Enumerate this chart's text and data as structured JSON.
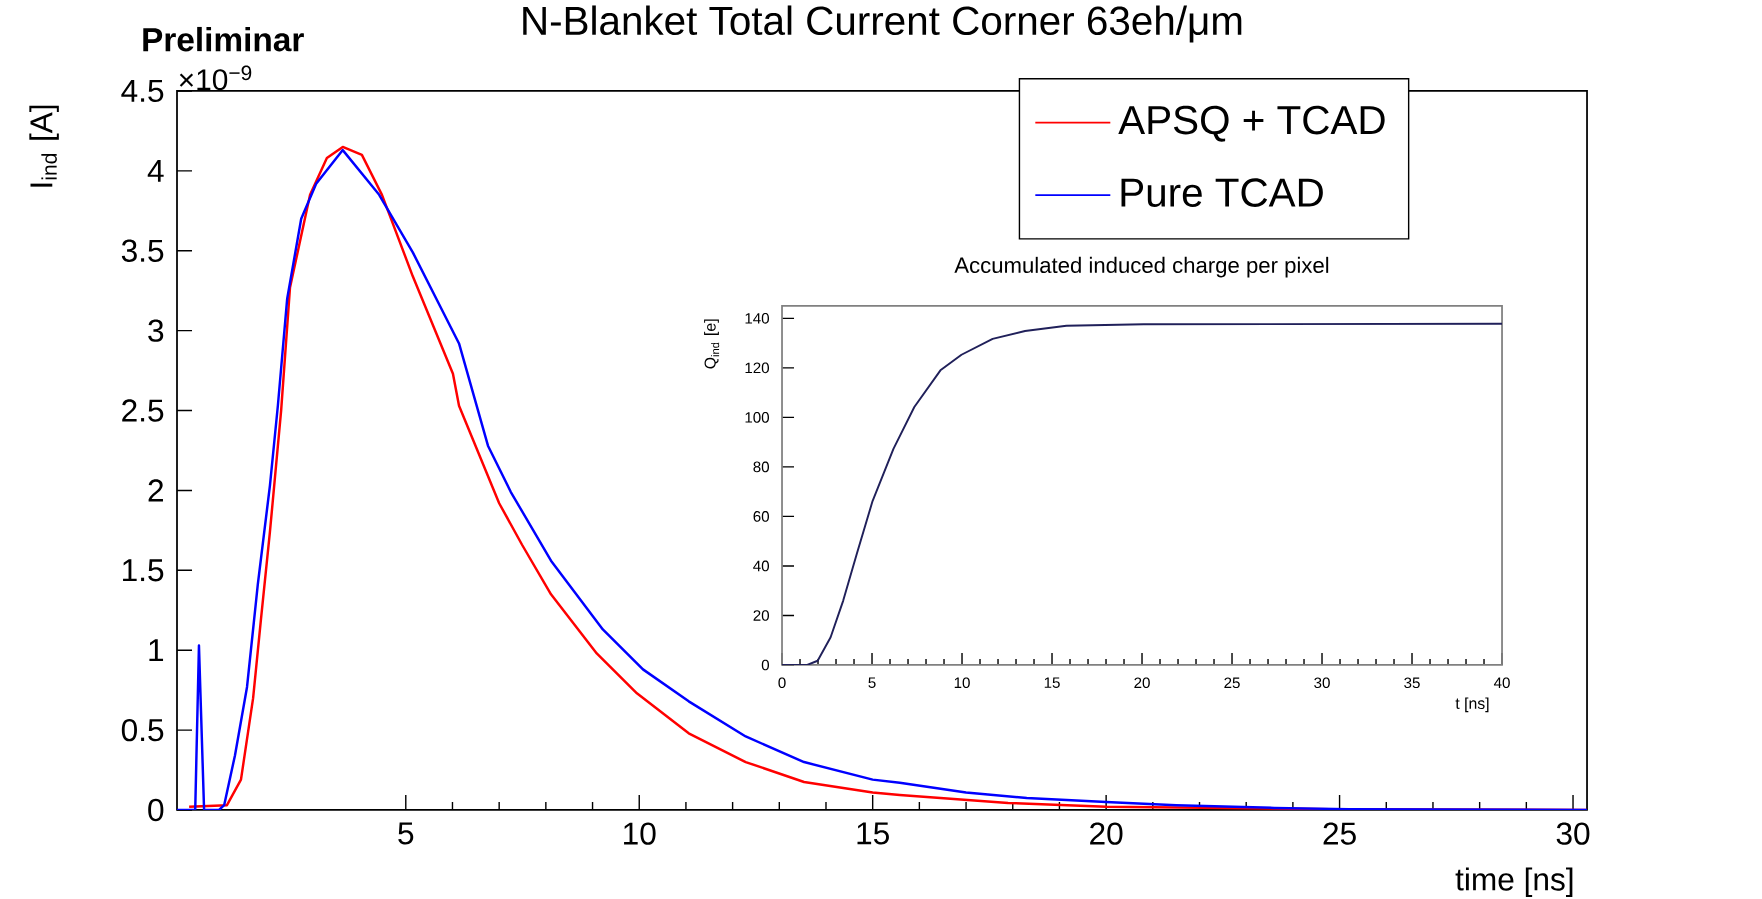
{
  "chart_data": [
    {
      "type": "line",
      "title": "N-Blanket Total Current Corner 63eh/μm",
      "xlabel": "time [ns]",
      "ylabel": "I$_{ind}$ [A]",
      "annotations": [
        "Preliminar",
        "×10$^{−9}$"
      ],
      "xlim": [
        0.1,
        30.3
      ],
      "ylim": [
        0,
        4.5
      ],
      "xticks": [
        5,
        10,
        15,
        20,
        25,
        30
      ],
      "yticks": [
        0,
        0.5,
        1,
        1.5,
        2,
        2.5,
        3,
        3.5,
        4,
        4.5
      ],
      "legend": "top right",
      "marker": "none",
      "line_style": "solid",
      "series": [
        {
          "name": "APSQ + TCAD",
          "color": "#ff0000",
          "x": [
            0.36,
            1.17,
            1.47,
            1.73,
            1.9,
            2.09,
            2.33,
            2.52,
            2.95,
            3.31,
            3.65,
            4.06,
            4.49,
            5.15,
            6.01,
            6.14,
            7.0,
            7.49,
            8.11,
            9.09,
            9.95,
            11.06,
            12.28,
            13.53,
            15.0,
            15.58,
            17.9,
            20.0,
            24.8,
            30.3
          ],
          "values": [
            0.02,
            0.03,
            0.19,
            0.7,
            1.2,
            1.74,
            2.5,
            3.27,
            3.85,
            4.08,
            4.15,
            4.1,
            3.85,
            3.34,
            2.73,
            2.53,
            1.92,
            1.66,
            1.35,
            0.98,
            0.73,
            0.48,
            0.3,
            0.175,
            0.11,
            0.094,
            0.044,
            0.02,
            0.005,
            0
          ]
        },
        {
          "name": "Pure TCAD",
          "color": "#0000ff",
          "x": [
            0.1,
            0.49,
            0.57,
            0.68,
            1.0,
            1.11,
            1.34,
            1.6,
            1.83,
            2.09,
            2.26,
            2.46,
            2.76,
            3.08,
            3.65,
            4.43,
            5.15,
            6.14,
            6.76,
            7.25,
            8.11,
            9.22,
            10.08,
            11.06,
            12.28,
            13.53,
            15.0,
            15.58,
            17.0,
            18.3,
            20.0,
            21.5,
            23.6,
            25.2,
            30.3
          ],
          "values": [
            0,
            0,
            1.03,
            0,
            0,
            0.03,
            0.34,
            0.77,
            1.41,
            2.03,
            2.53,
            3.2,
            3.7,
            3.92,
            4.13,
            3.85,
            3.49,
            2.92,
            2.28,
            1.99,
            1.56,
            1.13,
            0.88,
            0.68,
            0.46,
            0.3,
            0.19,
            0.17,
            0.11,
            0.075,
            0.05,
            0.03,
            0.013,
            0.005,
            0
          ]
        }
      ]
    },
    {
      "type": "line",
      "title": "Accumulated induced charge per pixel",
      "xlabel": "t [ns]",
      "ylabel": "Q$_{ind}$ [e]",
      "xlim": [
        0,
        40
      ],
      "ylim": [
        0,
        145
      ],
      "xticks": [
        0,
        5,
        10,
        15,
        20,
        25,
        30,
        35,
        40
      ],
      "yticks": [
        0,
        20,
        40,
        60,
        80,
        100,
        120,
        140
      ],
      "marker": "none",
      "line_style": "solid",
      "series": [
        {
          "color": "#20205a",
          "x": [
            0,
            1.4,
            1.98,
            2.7,
            3.4,
            4.16,
            5.03,
            6.19,
            7.35,
            8.8,
            9.97,
            11.7,
            13.5,
            15.8,
            20.1,
            40
          ],
          "values": [
            0,
            0,
            1.7,
            11.2,
            26,
            45,
            66.2,
            87.3,
            104.2,
            119,
            125.3,
            131.7,
            134.9,
            137,
            137.6,
            137.8
          ]
        }
      ]
    }
  ]
}
